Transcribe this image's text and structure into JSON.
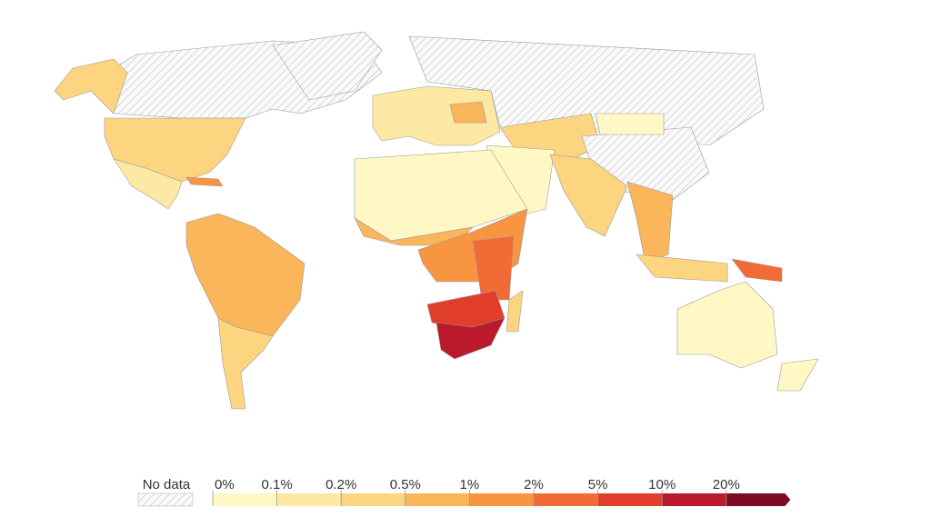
{
  "legend": {
    "no_data": "No data",
    "labels": [
      "0%",
      "0.1%",
      "0.2%",
      "0.5%",
      "1%",
      "2%",
      "5%",
      "10%",
      "20%"
    ],
    "colors": [
      "#fff8c4",
      "#fde9a4",
      "#fdd47f",
      "#fbb55a",
      "#f89540",
      "#f26b36",
      "#e03d2c",
      "#bb1a2c",
      "#7d0a22"
    ]
  }
}
